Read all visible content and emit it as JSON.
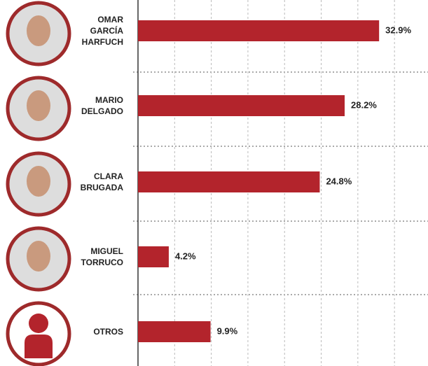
{
  "chart_data": {
    "type": "bar",
    "orientation": "horizontal",
    "categories": [
      "OMAR GARCÍA HARFUCH",
      "MARIO DELGADO",
      "CLARA BRUGADA",
      "MIGUEL TORRUCO",
      "OTROS"
    ],
    "values": [
      32.9,
      28.2,
      24.8,
      4.2,
      9.9
    ],
    "value_labels": [
      "32.9%",
      "28.2%",
      "24.8%",
      "4.2%",
      "9.9%"
    ],
    "color": "#b3242c",
    "xlim": [
      0,
      39
    ],
    "xticks": [
      0,
      5,
      10,
      15,
      20,
      25,
      30,
      35
    ],
    "grid": true
  }
}
